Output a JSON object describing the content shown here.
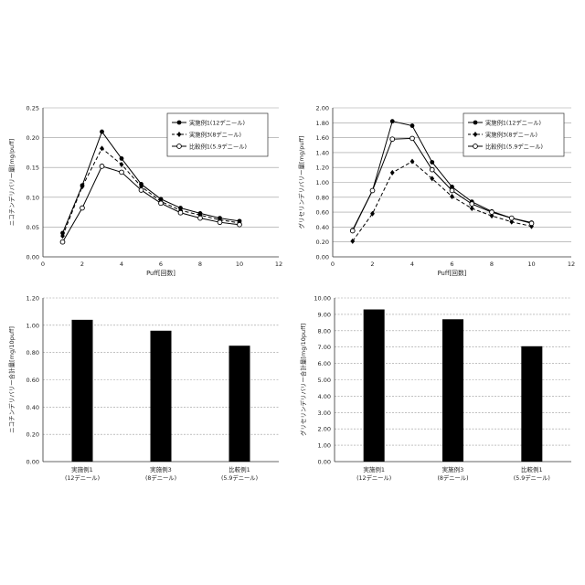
{
  "chart_data": [
    {
      "type": "line",
      "ylabel": "ニコチンデリバリー量[mg/puff]",
      "xlabel": "Puff[回数]",
      "xlim": [
        0,
        12
      ],
      "xticks": [
        "0",
        "2",
        "4",
        "6",
        "8",
        "10",
        "12"
      ],
      "ylim": [
        0,
        0.25
      ],
      "yticks": [
        "0.00",
        "0.05",
        "0.10",
        "0.15",
        "0.20",
        "0.25"
      ],
      "grid": true,
      "legend": "top-right",
      "x": [
        1,
        2,
        3,
        4,
        5,
        6,
        7,
        8,
        9,
        10
      ],
      "series": [
        {
          "name": "実施例1(12デニール)",
          "marker": "filled-circle",
          "line": "solid",
          "values": [
            0.04,
            0.12,
            0.21,
            0.165,
            0.122,
            0.097,
            0.082,
            0.073,
            0.065,
            0.06
          ]
        },
        {
          "name": "実施例3(8デニール)",
          "marker": "filled-diamond",
          "line": "dashed",
          "values": [
            0.035,
            0.118,
            0.182,
            0.155,
            0.118,
            0.093,
            0.078,
            0.07,
            0.062,
            0.057
          ]
        },
        {
          "name": "比較例1(5.9デニール)",
          "marker": "open-circle",
          "line": "solid",
          "values": [
            0.025,
            0.082,
            0.152,
            0.142,
            0.112,
            0.09,
            0.074,
            0.065,
            0.058,
            0.054
          ]
        }
      ]
    },
    {
      "type": "line",
      "ylabel": "グリセリンデリバリー量[mg/puff]",
      "xlabel": "Puff[回数]",
      "xlim": [
        0,
        12
      ],
      "xticks": [
        "0",
        "2",
        "4",
        "6",
        "8",
        "10",
        "12"
      ],
      "ylim": [
        0,
        2.0
      ],
      "yticks": [
        "0.00",
        "0.20",
        "0.40",
        "0.60",
        "0.80",
        "1.00",
        "1.20",
        "1.40",
        "1.60",
        "1.80",
        "2.00"
      ],
      "grid": true,
      "legend": "top-right",
      "x": [
        1,
        2,
        3,
        4,
        5,
        6,
        7,
        8,
        9,
        10
      ],
      "series": [
        {
          "name": "実施例1(12デニール)",
          "marker": "filled-circle",
          "line": "solid",
          "values": [
            0.36,
            0.89,
            1.82,
            1.76,
            1.27,
            0.94,
            0.74,
            0.61,
            0.52,
            0.46
          ]
        },
        {
          "name": "実施例3(8デニール)",
          "marker": "filled-diamond",
          "line": "dashed",
          "values": [
            0.21,
            0.58,
            1.13,
            1.28,
            1.05,
            0.81,
            0.65,
            0.55,
            0.47,
            0.41
          ]
        },
        {
          "name": "比較例1(5.9デニール)",
          "marker": "open-circle",
          "line": "solid",
          "values": [
            0.35,
            0.89,
            1.58,
            1.59,
            1.17,
            0.89,
            0.71,
            0.6,
            0.52,
            0.45
          ]
        }
      ]
    },
    {
      "type": "bar",
      "ylabel": "ニコチンデリバリー合計量[mg/10puff]",
      "ylim": [
        0,
        1.2
      ],
      "yticks": [
        "0.00",
        "0.20",
        "0.40",
        "0.60",
        "0.80",
        "1.00",
        "1.20"
      ],
      "grid": true,
      "categories": [
        [
          "実施例1",
          "(12デニール)"
        ],
        [
          "実施例3",
          "(8デニール)"
        ],
        [
          "比較例1",
          "(5.9デニール)"
        ]
      ],
      "values": [
        1.04,
        0.96,
        0.85
      ]
    },
    {
      "type": "bar",
      "ylabel": "グリセリンデリバリー合計量[mg/10puff]",
      "ylim": [
        0,
        10
      ],
      "yticks": [
        "0.00",
        "1.00",
        "2.00",
        "3.00",
        "4.00",
        "5.00",
        "6.00",
        "7.00",
        "8.00",
        "9.00",
        "10.00"
      ],
      "grid": true,
      "categories": [
        [
          "実施例1",
          "(12デニール)"
        ],
        [
          "実施例3",
          "(8デニール)"
        ],
        [
          "比較例1",
          "(5.9デニール)"
        ]
      ],
      "values": [
        9.3,
        8.7,
        7.05
      ]
    }
  ]
}
